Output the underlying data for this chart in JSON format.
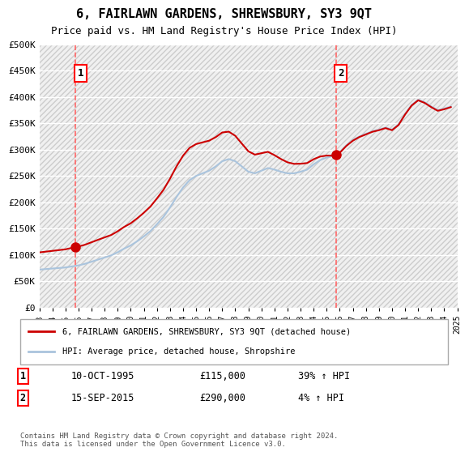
{
  "title": "6, FAIRLAWN GARDENS, SHREWSBURY, SY3 9QT",
  "subtitle": "Price paid vs. HM Land Registry's House Price Index (HPI)",
  "ylabel": "",
  "ylim": [
    0,
    500000
  ],
  "yticks": [
    0,
    50000,
    100000,
    150000,
    200000,
    250000,
    300000,
    350000,
    400000,
    450000,
    500000
  ],
  "ytick_labels": [
    "£0",
    "£50K",
    "£100K",
    "£150K",
    "£200K",
    "£250K",
    "£300K",
    "£350K",
    "£400K",
    "£450K",
    "£500K"
  ],
  "sale1_date": 1995.78,
  "sale1_price": 115000,
  "sale1_label": "1",
  "sale2_date": 2015.71,
  "sale2_price": 290000,
  "sale2_label": "2",
  "legend_house_label": "6, FAIRLAWN GARDENS, SHREWSBURY, SY3 9QT (detached house)",
  "legend_hpi_label": "HPI: Average price, detached house, Shropshire",
  "house_color": "#cc0000",
  "hpi_color": "#aac4dd",
  "annotation1_date": "10-OCT-1995",
  "annotation1_price": "£115,000",
  "annotation1_hpi": "39% ↑ HPI",
  "annotation2_date": "15-SEP-2015",
  "annotation2_price": "£290,000",
  "annotation2_hpi": "4% ↑ HPI",
  "footer": "Contains HM Land Registry data © Crown copyright and database right 2024.\nThis data is licensed under the Open Government Licence v3.0.",
  "bg_hatch_color": "#e8e8e8",
  "dashed_line_color": "#ff6666",
  "xmin": 1993,
  "xmax": 2025
}
